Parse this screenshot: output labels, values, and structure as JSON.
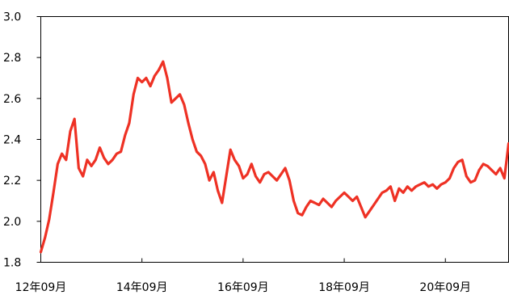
{
  "chart_data": {
    "type": "line",
    "title": "",
    "xlabel": "",
    "ylabel": "",
    "x_ticks": [
      "12年09月",
      "14年09月",
      "16年09月",
      "18年09月",
      "20年09月"
    ],
    "x_tick_dates": [
      "2012-09",
      "2014-09",
      "2016-09",
      "2018-09",
      "2020-09"
    ],
    "x_range": [
      "2012-09",
      "2021-12"
    ],
    "y_ticks": [
      "1.8",
      "2.0",
      "2.2",
      "2.4",
      "2.6",
      "2.8",
      "3.0"
    ],
    "ylim": [
      1.8,
      3.0
    ],
    "grid": false,
    "legend": "none",
    "series": [
      {
        "color": "#ee3124",
        "x": [
          "2012-09",
          "2012-10",
          "2012-11",
          "2012-12",
          "2013-01",
          "2013-02",
          "2013-03",
          "2013-04",
          "2013-05",
          "2013-06",
          "2013-07",
          "2013-08",
          "2013-09",
          "2013-10",
          "2013-11",
          "2013-12",
          "2014-01",
          "2014-02",
          "2014-03",
          "2014-04",
          "2014-05",
          "2014-06",
          "2014-07",
          "2014-08",
          "2014-09",
          "2014-10",
          "2014-11",
          "2014-12",
          "2015-01",
          "2015-02",
          "2015-03",
          "2015-04",
          "2015-05",
          "2015-06",
          "2015-07",
          "2015-08",
          "2015-09",
          "2015-10",
          "2015-11",
          "2015-12",
          "2016-01",
          "2016-02",
          "2016-03",
          "2016-04",
          "2016-05",
          "2016-06",
          "2016-07",
          "2016-08",
          "2016-09",
          "2016-10",
          "2016-11",
          "2016-12",
          "2017-01",
          "2017-02",
          "2017-03",
          "2017-04",
          "2017-05",
          "2017-06",
          "2017-07",
          "2017-08",
          "2017-09",
          "2017-10",
          "2017-11",
          "2017-12",
          "2018-01",
          "2018-02",
          "2018-03",
          "2018-04",
          "2018-05",
          "2018-06",
          "2018-07",
          "2018-08",
          "2018-09",
          "2018-10",
          "2018-11",
          "2018-12",
          "2019-01",
          "2019-02",
          "2019-03",
          "2019-04",
          "2019-05",
          "2019-06",
          "2019-07",
          "2019-08",
          "2019-09",
          "2019-10",
          "2019-11",
          "2019-12",
          "2020-01",
          "2020-02",
          "2020-03",
          "2020-04",
          "2020-05",
          "2020-06",
          "2020-07",
          "2020-08",
          "2020-09",
          "2020-10",
          "2020-11",
          "2020-12",
          "2021-01",
          "2021-02",
          "2021-03",
          "2021-04",
          "2021-05",
          "2021-06",
          "2021-07",
          "2021-08",
          "2021-09",
          "2021-10",
          "2021-11",
          "2021-12"
        ],
        "values": [
          1.85,
          1.92,
          2.01,
          2.14,
          2.28,
          2.33,
          2.3,
          2.44,
          2.5,
          2.26,
          2.22,
          2.3,
          2.27,
          2.3,
          2.36,
          2.31,
          2.28,
          2.3,
          2.33,
          2.34,
          2.42,
          2.48,
          2.62,
          2.7,
          2.68,
          2.7,
          2.66,
          2.71,
          2.74,
          2.78,
          2.7,
          2.58,
          2.6,
          2.62,
          2.57,
          2.48,
          2.4,
          2.34,
          2.32,
          2.28,
          2.2,
          2.24,
          2.15,
          2.09,
          2.22,
          2.35,
          2.3,
          2.27,
          2.21,
          2.23,
          2.28,
          2.22,
          2.19,
          2.23,
          2.24,
          2.22,
          2.2,
          2.23,
          2.26,
          2.2,
          2.1,
          2.04,
          2.03,
          2.07,
          2.1,
          2.09,
          2.08,
          2.11,
          2.09,
          2.07,
          2.1,
          2.12,
          2.14,
          2.12,
          2.1,
          2.12,
          2.07,
          2.02,
          2.05,
          2.08,
          2.11,
          2.14,
          2.15,
          2.17,
          2.1,
          2.16,
          2.14,
          2.17,
          2.15,
          2.17,
          2.18,
          2.19,
          2.17,
          2.18,
          2.16,
          2.18,
          2.19,
          2.21,
          2.26,
          2.29,
          2.3,
          2.22,
          2.19,
          2.2,
          2.25,
          2.28,
          2.27,
          2.25,
          2.23,
          2.26,
          2.21,
          2.38
        ]
      }
    ]
  }
}
